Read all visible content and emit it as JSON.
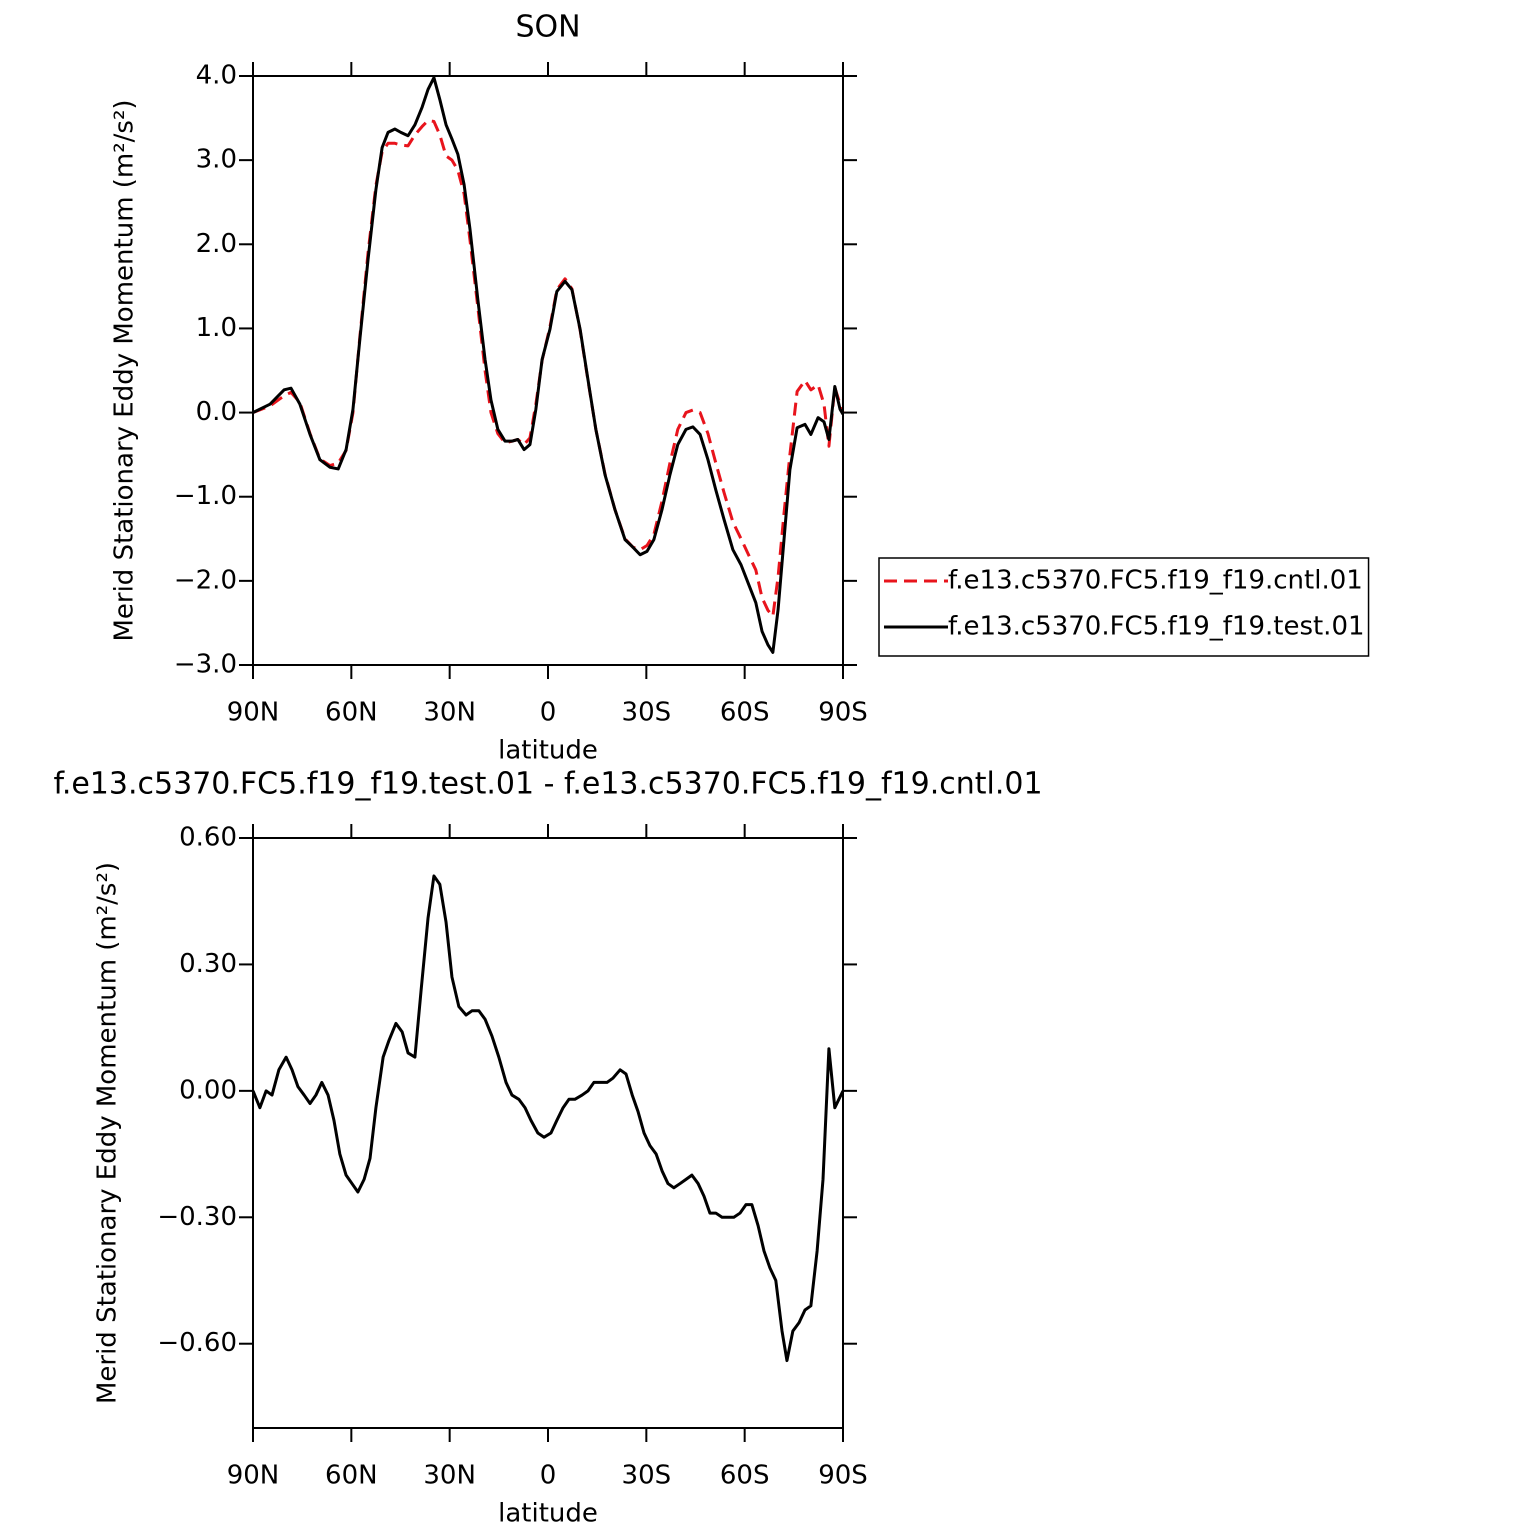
{
  "chart_data": [
    {
      "type": "line",
      "title": "SON",
      "xlabel": "latitude",
      "ylabel": "Merid Stationary Eddy Momentum (m²/s²)",
      "xlim": [
        90,
        -90
      ],
      "xticks": [
        {
          "value": 90,
          "label": "90N"
        },
        {
          "value": 60,
          "label": "60N"
        },
        {
          "value": 30,
          "label": "30N"
        },
        0,
        {
          "value": -30,
          "label": "30S"
        },
        {
          "value": -60,
          "label": "60S"
        },
        {
          "value": -90,
          "label": "90S"
        }
      ],
      "ylim": [
        -3,
        4
      ],
      "yticks": [
        {
          "value": -3,
          "label": "−3.0"
        },
        {
          "value": -2,
          "label": "−2.0"
        },
        {
          "value": -1,
          "label": "−1.0"
        },
        {
          "value": 0,
          "label": "0.0"
        },
        {
          "value": 1,
          "label": "1.0"
        },
        {
          "value": 2,
          "label": "2.0"
        },
        {
          "value": 3,
          "label": "3.0"
        },
        {
          "value": 4,
          "label": "4.0"
        }
      ],
      "legend": "right",
      "x": [
        90,
        84.8,
        80.5,
        78.4,
        75.7,
        72.6,
        69.6,
        66.5,
        64,
        61.6,
        59.5,
        57.4,
        54.9,
        52.5,
        50.6,
        48.8,
        46.7,
        44.9,
        42.7,
        40.6,
        38.4,
        36.6,
        34.8,
        33,
        31.1,
        29.3,
        27.5,
        25.6,
        23.8,
        21.4,
        19.2,
        17.4,
        15.3,
        13.1,
        11,
        9.2,
        7.3,
        5.5,
        3.7,
        1.8,
        -0.6,
        -2.7,
        -5.2,
        -7.3,
        -9.8,
        -12.2,
        -14.6,
        -17.4,
        -20.4,
        -23.5,
        -25.9,
        -28.1,
        -30.2,
        -32.3,
        -34.8,
        -37.2,
        -39.6,
        -42.1,
        -44.2,
        -46.4,
        -48.8,
        -51.2,
        -53.7,
        -56.4,
        -58.9,
        -61.3,
        -63.4,
        -65.3,
        -67.1,
        -68.6,
        -70.2,
        -72,
        -73.8,
        -76,
        -78.4,
        -80.2,
        -82.4,
        -84.2,
        -85.7,
        -87.5,
        -89.1,
        -90
      ],
      "series": [
        {
          "name": "f.e13.c5370.FC5.f19_f19.cntl.01",
          "color": "#e8141c",
          "dashed": true,
          "values": [
            0,
            0.08,
            0.2,
            0.24,
            0.12,
            -0.25,
            -0.55,
            -0.63,
            -0.6,
            -0.45,
            0,
            0.9,
            1.9,
            2.7,
            3.1,
            3.2,
            3.2,
            3.18,
            3.17,
            3.3,
            3.4,
            3.47,
            3.46,
            3.3,
            3.05,
            3,
            2.88,
            2.6,
            2.05,
            1.25,
            0.5,
            0,
            -0.25,
            -0.36,
            -0.34,
            -0.32,
            -0.38,
            -0.3,
            0.1,
            0.62,
            1.02,
            1.46,
            1.59,
            1.47,
            0.98,
            0.38,
            -0.2,
            -0.73,
            -1.15,
            -1.5,
            -1.6,
            -1.63,
            -1.58,
            -1.45,
            -1.05,
            -0.6,
            -0.2,
            0,
            0.03,
            0,
            -0.25,
            -0.6,
            -0.95,
            -1.3,
            -1.5,
            -1.7,
            -1.87,
            -2.2,
            -2.35,
            -2.42,
            -1.95,
            -1.2,
            -0.5,
            0.25,
            0.38,
            0.27,
            0.33,
            0.1,
            -0.4,
            0.3,
            0.1,
            0
          ]
        },
        {
          "name": "f.e13.c5370.FC5.f19_f19.test.01",
          "color": "#000000",
          "dashed": false,
          "values": [
            0,
            0.1,
            0.27,
            0.29,
            0.1,
            -0.26,
            -0.56,
            -0.65,
            -0.67,
            -0.44,
            0.04,
            0.87,
            1.82,
            2.65,
            3.15,
            3.33,
            3.37,
            3.33,
            3.29,
            3.42,
            3.63,
            3.84,
            3.98,
            3.72,
            3.42,
            3.25,
            3.07,
            2.71,
            2.18,
            1.34,
            0.63,
            0.15,
            -0.2,
            -0.34,
            -0.34,
            -0.32,
            -0.44,
            -0.38,
            0.04,
            0.63,
            0.99,
            1.44,
            1.56,
            1.46,
            0.99,
            0.39,
            -0.2,
            -0.74,
            -1.15,
            -1.51,
            -1.6,
            -1.69,
            -1.65,
            -1.51,
            -1.15,
            -0.74,
            -0.38,
            -0.2,
            -0.17,
            -0.26,
            -0.56,
            -0.92,
            -1.27,
            -1.63,
            -1.81,
            -2.05,
            -2.26,
            -2.6,
            -2.76,
            -2.85,
            -2.34,
            -1.51,
            -0.68,
            -0.18,
            -0.14,
            -0.26,
            -0.06,
            -0.11,
            -0.32,
            0.31,
            0.04,
            -0.02
          ]
        }
      ]
    },
    {
      "type": "line",
      "title": "f.e13.c5370.FC5.f19_f19.test.01 - f.e13.c5370.FC5.f19_f19.cntl.01",
      "xlabel": "latitude",
      "ylabel": "Merid Stationary Eddy Momentum (m²/s²)",
      "xlim": [
        90,
        -90
      ],
      "xticks": [
        {
          "value": 90,
          "label": "90N"
        },
        {
          "value": 60,
          "label": "60N"
        },
        {
          "value": 30,
          "label": "30N"
        },
        0,
        {
          "value": -30,
          "label": "30S"
        },
        {
          "value": -60,
          "label": "60S"
        },
        {
          "value": -90,
          "label": "90S"
        }
      ],
      "ylim": [
        -0.8,
        0.6
      ],
      "yticks": [
        {
          "value": -0.6,
          "label": "−0.60"
        },
        {
          "value": -0.3,
          "label": "−0.30"
        },
        {
          "value": 0,
          "label": "0.00"
        },
        {
          "value": 0.3,
          "label": "0.30"
        },
        {
          "value": 0.6,
          "label": "0.60"
        }
      ],
      "x": [
        90,
        87.9,
        86,
        84.2,
        82.1,
        79.9,
        78.1,
        76.3,
        74.4,
        72.6,
        70.8,
        69,
        67.1,
        65.3,
        63.5,
        61.6,
        59.8,
        58,
        56.1,
        54.3,
        52.5,
        50.3,
        48.5,
        46.4,
        44.5,
        42.7,
        40.6,
        38.7,
        36.6,
        34.8,
        33,
        31.1,
        29.3,
        27.2,
        25,
        23.2,
        21.1,
        19.2,
        17.1,
        15,
        12.8,
        11,
        8.9,
        7,
        5.2,
        3.1,
        1.2,
        -0.9,
        -2.7,
        -4.6,
        -6.4,
        -8.2,
        -10.4,
        -12.2,
        -14,
        -16.2,
        -18,
        -19.8,
        -22,
        -23.8,
        -25.7,
        -27.5,
        -29.3,
        -31.1,
        -33,
        -34.8,
        -36.6,
        -38.4,
        -40.3,
        -42.1,
        -43.9,
        -45.8,
        -47.6,
        -49.4,
        -51.2,
        -53.1,
        -54.9,
        -56.7,
        -58.6,
        -60.4,
        -62.2,
        -64.1,
        -65.9,
        -67.7,
        -69.5,
        -71.4,
        -72.9,
        -74.7,
        -76.6,
        -78.4,
        -80.2,
        -82.1,
        -83.9,
        -85.7,
        -87.5,
        -90
      ],
      "series": [
        {
          "color": "#000000",
          "dashed": false,
          "values": [
            0,
            -0.04,
            0,
            -0.01,
            0.05,
            0.08,
            0.05,
            0.01,
            -0.01,
            -0.03,
            -0.01,
            0.02,
            -0.01,
            -0.07,
            -0.15,
            -0.2,
            -0.22,
            -0.24,
            -0.21,
            -0.16,
            -0.04,
            0.08,
            0.12,
            0.16,
            0.14,
            0.09,
            0.08,
            0.24,
            0.41,
            0.51,
            0.49,
            0.4,
            0.27,
            0.2,
            0.18,
            0.19,
            0.19,
            0.17,
            0.13,
            0.08,
            0.02,
            -0.01,
            -0.02,
            -0.04,
            -0.07,
            -0.1,
            -0.11,
            -0.1,
            -0.07,
            -0.04,
            -0.02,
            -0.02,
            -0.01,
            0,
            0.02,
            0.02,
            0.02,
            0.03,
            0.05,
            0.04,
            -0.01,
            -0.05,
            -0.1,
            -0.13,
            -0.15,
            -0.19,
            -0.22,
            -0.23,
            -0.22,
            -0.21,
            -0.2,
            -0.22,
            -0.25,
            -0.29,
            -0.29,
            -0.3,
            -0.3,
            -0.3,
            -0.29,
            -0.27,
            -0.27,
            -0.32,
            -0.38,
            -0.42,
            -0.45,
            -0.57,
            -0.64,
            -0.57,
            -0.55,
            -0.52,
            -0.51,
            -0.38,
            -0.21,
            0.1,
            -0.04,
            0
          ]
        }
      ]
    }
  ]
}
